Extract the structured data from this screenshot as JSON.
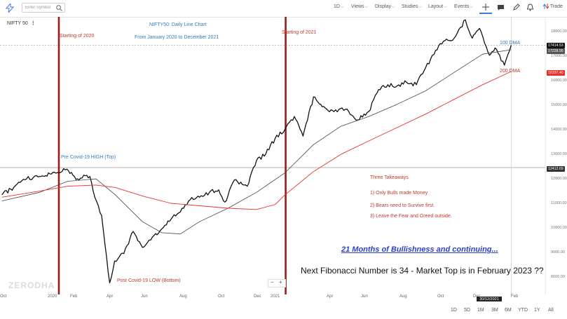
{
  "toolbar": {
    "search_placeholder": "Enter Symbol",
    "interval": "1D",
    "views": "Views",
    "display": "Display",
    "studies": "Studies",
    "layout": "Layout",
    "events": "Events",
    "trade": "Trade"
  },
  "symbol": {
    "name": "NIFTY 50",
    "menu": "⋮"
  },
  "annotations": {
    "chart_title": "NIFTY50: Daily Line Chart",
    "chart_subtitle": "From January 2020 to December 2021",
    "start_2020": "Starting of 2020",
    "start_2021": "Starting of 2021",
    "pre_covid": "Pre Covid-19 HIGH (Top)",
    "post_covid": "Post Covid-19 LOW (Bottom)",
    "dma100": "100 DMA",
    "dma200": "200 DMA",
    "takeaways_title": "Three Takeaways",
    "takeaway1": "1)  Only Bulls made Money",
    "takeaway2": "2)  Bears need to Survive first.",
    "takeaway3": "3)  Leave the Fear and Greed outside.",
    "headline": "21 Months of Bullishness and continuing...",
    "fibonacci": "Next Fibonacci Number is 34 - Market Top is in February 2023 ??"
  },
  "watermark": "ZERODHA",
  "zoom": {
    "minus": "−",
    "plus": "+"
  },
  "price_tags": {
    "last": "17414.53",
    "dma100": "17228.95",
    "dma200": "16337.40",
    "level": "12412.69"
  },
  "y_axis": [
    "18000.00",
    "17000.00",
    "16000.00",
    "15000.00",
    "14000.00",
    "13000.00",
    "12000.00",
    "11000.00",
    "10000.00",
    "9000.00",
    "8000.00"
  ],
  "x_axis": [
    "Oct",
    "2020",
    "Feb",
    "Apr",
    "Jun",
    "Aug",
    "Oct",
    "Dec",
    "2021",
    "Apr",
    "Jun",
    "Aug",
    "Oct",
    "Dec",
    "Feb"
  ],
  "crosshair_date": "30/12/2021",
  "ranges": [
    "1D",
    "5D",
    "1M",
    "3M",
    "6M",
    "YTD",
    "1Y",
    "All"
  ],
  "colors": {
    "price_line": "#111111",
    "dma100_line": "#444444",
    "dma200_line": "#e8312c",
    "vertical_markers": "#9b1b1b",
    "annotation_red": "#c0392b",
    "annotation_blue": "#2f7bbf"
  },
  "chart_data": {
    "type": "line",
    "title": "NIFTY50: Daily Line Chart",
    "ylim": [
      7700,
      18700
    ],
    "series": [
      {
        "name": "NIFTY 50",
        "points": [
          [
            "2019-10-01",
            11300
          ],
          [
            "2019-10-20",
            11600
          ],
          [
            "2019-11-10",
            11950
          ],
          [
            "2019-12-01",
            12050
          ],
          [
            "2019-12-20",
            12150
          ],
          [
            "2020-01-01",
            12200
          ],
          [
            "2020-01-14",
            12350
          ],
          [
            "2020-01-31",
            11950
          ],
          [
            "2020-02-10",
            12100
          ],
          [
            "2020-02-20",
            12050
          ],
          [
            "2020-02-28",
            11200
          ],
          [
            "2020-03-10",
            10450
          ],
          [
            "2020-03-23",
            7700
          ],
          [
            "2020-03-31",
            8600
          ],
          [
            "2020-04-15",
            8900
          ],
          [
            "2020-04-30",
            9800
          ],
          [
            "2020-05-15",
            9150
          ],
          [
            "2020-05-31",
            9580
          ],
          [
            "2020-06-15",
            9900
          ],
          [
            "2020-06-30",
            10300
          ],
          [
            "2020-07-15",
            10600
          ],
          [
            "2020-07-31",
            11100
          ],
          [
            "2020-08-15",
            11200
          ],
          [
            "2020-08-31",
            11400
          ],
          [
            "2020-09-15",
            11500
          ],
          [
            "2020-09-25",
            11000
          ],
          [
            "2020-10-10",
            11900
          ],
          [
            "2020-10-31",
            11650
          ],
          [
            "2020-11-15",
            12700
          ],
          [
            "2020-11-30",
            12970
          ],
          [
            "2020-12-15",
            13600
          ],
          [
            "2020-12-31",
            13980
          ],
          [
            "2021-01-15",
            14500
          ],
          [
            "2021-01-29",
            13700
          ],
          [
            "2021-02-15",
            15300
          ],
          [
            "2021-03-01",
            14900
          ],
          [
            "2021-03-20",
            14700
          ],
          [
            "2021-04-10",
            14800
          ],
          [
            "2021-04-25",
            14350
          ],
          [
            "2021-05-15",
            14700
          ],
          [
            "2021-05-31",
            15600
          ],
          [
            "2021-06-15",
            15800
          ],
          [
            "2021-06-30",
            15750
          ],
          [
            "2021-07-15",
            15900
          ],
          [
            "2021-07-31",
            15800
          ],
          [
            "2021-08-15",
            16500
          ],
          [
            "2021-08-31",
            17200
          ],
          [
            "2021-09-15",
            17600
          ],
          [
            "2021-09-30",
            17700
          ],
          [
            "2021-10-18",
            18450
          ],
          [
            "2021-10-29",
            17700
          ],
          [
            "2021-11-10",
            18100
          ],
          [
            "2021-11-26",
            17000
          ],
          [
            "2021-12-05",
            17300
          ],
          [
            "2021-12-20",
            16600
          ],
          [
            "2021-12-31",
            17414
          ]
        ]
      },
      {
        "name": "100 DMA",
        "points": [
          [
            "2019-10-01",
            11050
          ],
          [
            "2019-12-01",
            11400
          ],
          [
            "2020-01-15",
            11850
          ],
          [
            "2020-03-01",
            11950
          ],
          [
            "2020-04-01",
            11300
          ],
          [
            "2020-05-15",
            10200
          ],
          [
            "2020-06-15",
            9750
          ],
          [
            "2020-07-15",
            9700
          ],
          [
            "2020-08-15",
            10200
          ],
          [
            "2020-09-30",
            10750
          ],
          [
            "2020-11-15",
            11400
          ],
          [
            "2020-12-31",
            12200
          ],
          [
            "2021-02-15",
            13350
          ],
          [
            "2021-03-31",
            14100
          ],
          [
            "2021-05-15",
            14500
          ],
          [
            "2021-06-30",
            15000
          ],
          [
            "2021-08-15",
            15550
          ],
          [
            "2021-09-30",
            16300
          ],
          [
            "2021-11-15",
            17050
          ],
          [
            "2021-12-31",
            17229
          ]
        ]
      },
      {
        "name": "200 DMA",
        "points": [
          [
            "2019-10-01",
            11200
          ],
          [
            "2019-12-01",
            11450
          ],
          [
            "2020-01-15",
            11650
          ],
          [
            "2020-03-01",
            11700
          ],
          [
            "2020-04-01",
            11600
          ],
          [
            "2020-05-15",
            11250
          ],
          [
            "2020-06-30",
            10950
          ],
          [
            "2020-08-15",
            10850
          ],
          [
            "2020-09-30",
            10750
          ],
          [
            "2020-11-15",
            10700
          ],
          [
            "2020-12-15",
            10900
          ],
          [
            "2020-12-31",
            11300
          ],
          [
            "2021-02-15",
            12250
          ],
          [
            "2021-03-31",
            12950
          ],
          [
            "2021-05-15",
            13500
          ],
          [
            "2021-06-30",
            14050
          ],
          [
            "2021-08-15",
            14600
          ],
          [
            "2021-09-30",
            15200
          ],
          [
            "2021-11-15",
            15800
          ],
          [
            "2021-12-31",
            16337
          ]
        ]
      }
    ]
  }
}
